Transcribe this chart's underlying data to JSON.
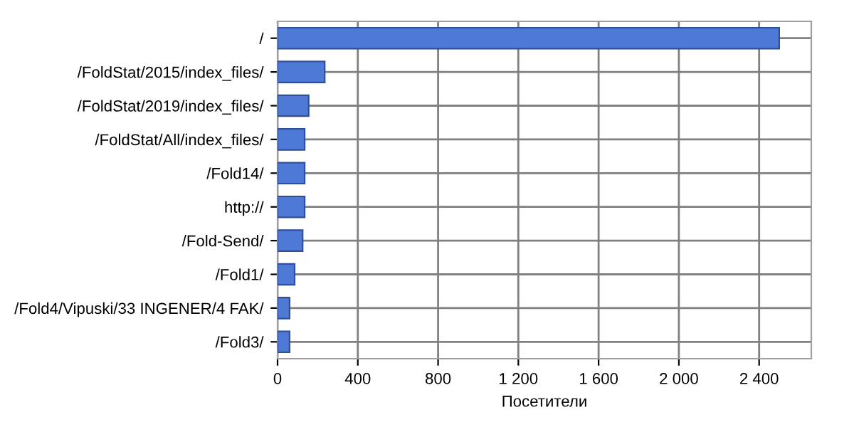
{
  "chart_data": {
    "type": "bar",
    "orientation": "horizontal",
    "xlabel": "Посетители",
    "categories": [
      "/",
      "/FoldStat/2015/index_files/",
      "/FoldStat/2019/index_files/",
      "/FoldStat/All/index_files/",
      "/Fold14/",
      "http://",
      "/Fold-Send/",
      "/Fold1/",
      "/Fold4/Vipuski/33 INGENER/4 FAK/",
      "/Fold3/"
    ],
    "values": [
      2500,
      235,
      155,
      135,
      135,
      135,
      125,
      85,
      60,
      60
    ],
    "color": "#4f79d6",
    "xlim": [
      0,
      2660
    ],
    "xticks": [
      0,
      400,
      800,
      {
        "value": 1200,
        "label": "1 200"
      },
      {
        "value": 1600,
        "label": "1 600"
      },
      {
        "value": 2000,
        "label": "2 000"
      },
      {
        "value": 2400,
        "label": "2 400"
      }
    ],
    "grid": true
  }
}
